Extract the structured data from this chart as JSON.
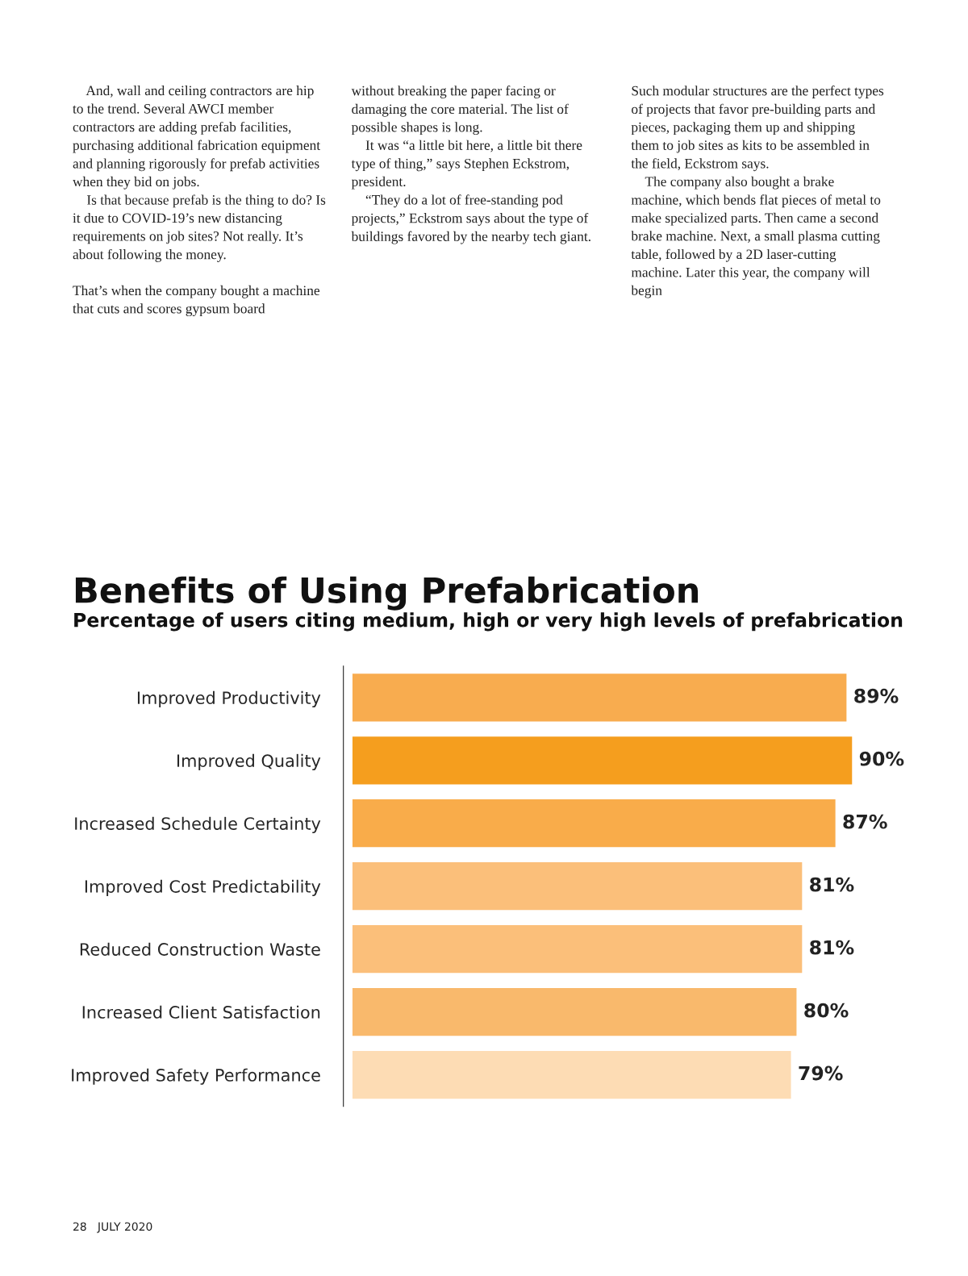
{
  "chart_data": {
    "type": "bar",
    "orientation": "horizontal",
    "title": "Benefits of Using Prefabrication",
    "subtitle": "Percentage of users citing medium, high or very high levels of prefabrication",
    "categories": [
      "Improved Productivity",
      "Improved Quality",
      "Increased Schedule Certainty",
      "Improved Cost Predictability",
      "Reduced Construction Waste",
      "Increased Client Satisfaction",
      "Improved Safety Performance"
    ],
    "values": [
      89,
      90,
      87,
      81,
      81,
      80,
      79
    ],
    "colors": [
      "#f8ac4f",
      "#f59e1e",
      "#f9ac4a",
      "#fbbf7a",
      "#fbbf7a",
      "#f9b96c",
      "#fddcb4"
    ],
    "value_labels": [
      "89%",
      "90%",
      "87%",
      "81%",
      "81%",
      "80%",
      "79%"
    ],
    "tick_labels": "y",
    "grid": false,
    "legend": false,
    "annotations": [
      "    And, wall and ceiling contractors are hip to the trend. Several AWCI member contractors are adding prefab facilities, purchasing additional fabrication equipment and planning rigorously for prefab activities when they bid on jobs.\n    Is that because prefab is the thing to do? Is it due to COVID-19’s new distancing requirements on job sites? Not really. It’s about following the money.\n\nThat’s when the company bought a machine that cuts and scores gypsum board",
      "without breaking the paper facing or damaging the core material. The list of possible shapes is long.\n    It was “a little bit here, a little bit there type of thing,” says Stephen Eckstrom, president.\n    “They do a lot of free-standing pod projects,” Eckstrom says about the type of buildings favored by the nearby tech giant.",
      "Such modular structures are the perfect types of projects that favor pre-building parts and pieces, packaging them up and shipping them to job sites as kits to be assembled in the field, Eckstrom says.\n    The company also bought a brake machine, which bends flat pieces of metal to make specialized parts. Then came a second brake machine. Next, a small plasma cutting table, followed by a 2D laser-cutting machine. Later this year, the company will begin",
      "28   JULY 2020"
    ]
  }
}
